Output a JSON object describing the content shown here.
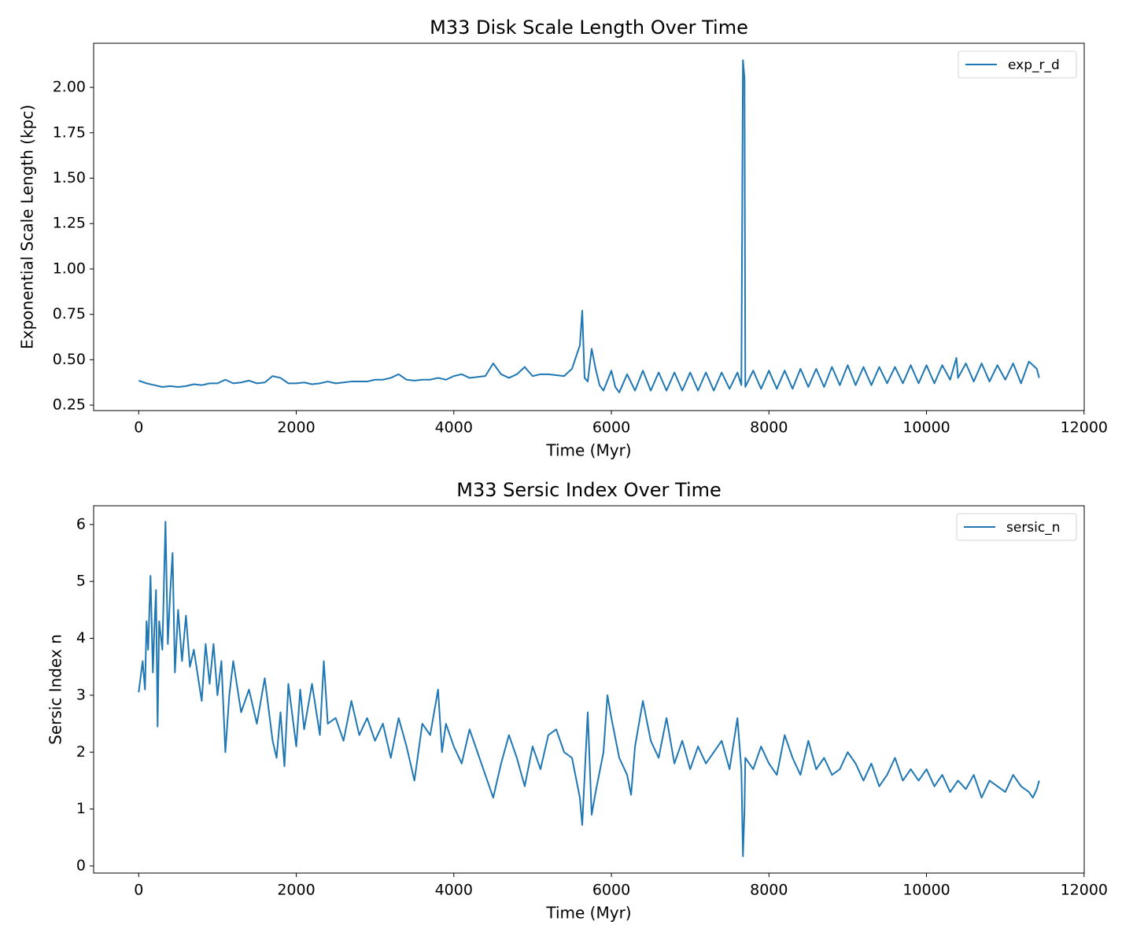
{
  "chart_data": [
    {
      "type": "line",
      "title": "M33 Disk Scale Length Over Time",
      "x_label": "Time (Myr)",
      "y_label": "Exponential Scale Length (kpc)",
      "x": [
        0,
        100,
        200,
        300,
        400,
        500,
        600,
        700,
        800,
        900,
        1000,
        1100,
        1200,
        1300,
        1400,
        1500,
        1600,
        1700,
        1800,
        1900,
        2000,
        2100,
        2200,
        2300,
        2400,
        2500,
        2600,
        2700,
        2800,
        2900,
        3000,
        3100,
        3200,
        3300,
        3400,
        3500,
        3600,
        3700,
        3800,
        3900,
        4000,
        4100,
        4200,
        4300,
        4400,
        4500,
        4600,
        4700,
        4800,
        4900,
        5000,
        5100,
        5200,
        5300,
        5400,
        5500,
        5600,
        5630,
        5660,
        5700,
        5750,
        5800,
        5850,
        5900,
        6000,
        6050,
        6100,
        6200,
        6300,
        6400,
        6500,
        6600,
        6700,
        6800,
        6900,
        7000,
        7100,
        7200,
        7300,
        7400,
        7500,
        7600,
        7650,
        7670,
        7690,
        7700,
        7800,
        7900,
        8000,
        8100,
        8200,
        8300,
        8400,
        8500,
        8600,
        8700,
        8800,
        8900,
        9000,
        9100,
        9200,
        9300,
        9400,
        9500,
        9600,
        9700,
        9800,
        9900,
        10000,
        10100,
        10200,
        10300,
        10380,
        10400,
        10500,
        10600,
        10700,
        10800,
        10900,
        11000,
        11100,
        11200,
        11300,
        11400,
        11430
      ],
      "series": [
        {
          "name": "exp_r_d",
          "color": "#1f77b4",
          "values": [
            0.385,
            0.37,
            0.36,
            0.35,
            0.355,
            0.35,
            0.355,
            0.365,
            0.36,
            0.37,
            0.37,
            0.39,
            0.37,
            0.375,
            0.385,
            0.37,
            0.375,
            0.41,
            0.4,
            0.37,
            0.37,
            0.375,
            0.365,
            0.37,
            0.38,
            0.37,
            0.375,
            0.38,
            0.38,
            0.38,
            0.39,
            0.39,
            0.4,
            0.42,
            0.39,
            0.385,
            0.39,
            0.39,
            0.4,
            0.39,
            0.41,
            0.42,
            0.4,
            0.405,
            0.41,
            0.48,
            0.42,
            0.4,
            0.42,
            0.46,
            0.41,
            0.42,
            0.42,
            0.415,
            0.41,
            0.45,
            0.58,
            0.77,
            0.4,
            0.38,
            0.56,
            0.45,
            0.36,
            0.33,
            0.44,
            0.35,
            0.32,
            0.42,
            0.33,
            0.44,
            0.33,
            0.43,
            0.33,
            0.43,
            0.33,
            0.43,
            0.33,
            0.43,
            0.33,
            0.43,
            0.34,
            0.43,
            0.36,
            2.15,
            2.05,
            0.35,
            0.44,
            0.34,
            0.44,
            0.34,
            0.44,
            0.34,
            0.45,
            0.35,
            0.45,
            0.35,
            0.46,
            0.36,
            0.47,
            0.36,
            0.46,
            0.36,
            0.46,
            0.37,
            0.46,
            0.37,
            0.47,
            0.37,
            0.47,
            0.37,
            0.47,
            0.39,
            0.51,
            0.4,
            0.48,
            0.38,
            0.48,
            0.38,
            0.47,
            0.39,
            0.48,
            0.37,
            0.49,
            0.45,
            0.4
          ]
        }
      ],
      "xlim": [
        -572,
        12002
      ],
      "ylim": [
        0.22,
        2.243
      ],
      "xticks": [
        0,
        2000,
        4000,
        6000,
        8000,
        10000,
        12000
      ],
      "yticks": [
        {
          "value": 0.25,
          "label": "0.25"
        },
        {
          "value": 0.5,
          "label": "0.50"
        },
        {
          "value": 0.75,
          "label": "0.75"
        },
        {
          "value": 1,
          "label": "1.00"
        },
        {
          "value": 1.25,
          "label": "1.25"
        },
        {
          "value": 1.5,
          "label": "1.50"
        },
        {
          "value": 1.75,
          "label": "1.75"
        },
        {
          "value": 2,
          "label": "2.00"
        }
      ],
      "legend": "upper right"
    },
    {
      "type": "line",
      "title": "M33 Sersic Index Over Time",
      "x_label": "Time (Myr)",
      "y_label": "Sersic Index n",
      "x": [
        0,
        50,
        80,
        100,
        120,
        150,
        180,
        200,
        220,
        240,
        260,
        300,
        340,
        370,
        400,
        430,
        460,
        500,
        550,
        600,
        650,
        700,
        800,
        850,
        900,
        950,
        1000,
        1050,
        1100,
        1150,
        1200,
        1300,
        1400,
        1500,
        1600,
        1700,
        1750,
        1800,
        1850,
        1900,
        2000,
        2050,
        2100,
        2200,
        2300,
        2350,
        2400,
        2500,
        2600,
        2700,
        2800,
        2900,
        3000,
        3100,
        3200,
        3300,
        3400,
        3500,
        3600,
        3700,
        3800,
        3850,
        3900,
        4000,
        4100,
        4200,
        4300,
        4400,
        4500,
        4600,
        4700,
        4800,
        4900,
        5000,
        5100,
        5200,
        5300,
        5400,
        5500,
        5600,
        5630,
        5700,
        5750,
        5800,
        5900,
        5950,
        6000,
        6100,
        6200,
        6250,
        6300,
        6400,
        6500,
        6600,
        6700,
        6800,
        6900,
        7000,
        7100,
        7200,
        7300,
        7400,
        7500,
        7600,
        7650,
        7670,
        7690,
        7700,
        7800,
        7900,
        8000,
        8100,
        8200,
        8300,
        8400,
        8500,
        8600,
        8700,
        8800,
        8900,
        9000,
        9100,
        9200,
        9300,
        9400,
        9500,
        9600,
        9700,
        9800,
        9900,
        10000,
        10100,
        10200,
        10300,
        10400,
        10500,
        10600,
        10700,
        10800,
        10900,
        11000,
        11100,
        11200,
        11300,
        11350,
        11400,
        11430
      ],
      "series": [
        {
          "name": "sersic_n",
          "color": "#1f77b4",
          "values": [
            3.05,
            3.6,
            3.1,
            4.3,
            3.8,
            5.1,
            3.4,
            4.2,
            4.85,
            2.45,
            4.3,
            3.8,
            6.05,
            3.9,
            4.8,
            5.5,
            3.4,
            4.5,
            3.6,
            4.4,
            3.5,
            3.8,
            2.9,
            3.9,
            3.2,
            3.9,
            3.0,
            3.6,
            2.0,
            3.0,
            3.6,
            2.7,
            3.1,
            2.5,
            3.3,
            2.2,
            1.9,
            2.7,
            1.75,
            3.2,
            2.1,
            3.1,
            2.4,
            3.2,
            2.3,
            3.6,
            2.5,
            2.6,
            2.2,
            2.9,
            2.3,
            2.6,
            2.2,
            2.5,
            1.9,
            2.6,
            2.1,
            1.5,
            2.5,
            2.3,
            3.1,
            2.0,
            2.5,
            2.1,
            1.8,
            2.4,
            2.0,
            1.6,
            1.2,
            1.8,
            2.3,
            1.9,
            1.4,
            2.1,
            1.7,
            2.3,
            2.4,
            2.0,
            1.9,
            1.2,
            0.72,
            2.7,
            0.9,
            1.3,
            2.0,
            3.0,
            2.6,
            1.9,
            1.6,
            1.25,
            2.1,
            2.9,
            2.2,
            1.9,
            2.6,
            1.8,
            2.2,
            1.7,
            2.1,
            1.8,
            2.0,
            2.2,
            1.7,
            2.6,
            1.7,
            0.17,
            1.0,
            1.9,
            1.7,
            2.1,
            1.8,
            1.6,
            2.3,
            1.9,
            1.6,
            2.2,
            1.7,
            1.9,
            1.6,
            1.7,
            2.0,
            1.8,
            1.5,
            1.8,
            1.4,
            1.6,
            1.9,
            1.5,
            1.7,
            1.5,
            1.7,
            1.4,
            1.6,
            1.3,
            1.5,
            1.35,
            1.6,
            1.2,
            1.5,
            1.4,
            1.3,
            1.6,
            1.4,
            1.3,
            1.2,
            1.35,
            1.5
          ]
        }
      ],
      "xlim": [
        -572,
        12002
      ],
      "ylim": [
        -0.125,
        6.33
      ],
      "xticks": [
        0,
        2000,
        4000,
        6000,
        8000,
        10000,
        12000
      ],
      "yticks": [
        0,
        1,
        2,
        3,
        4,
        5,
        6
      ],
      "legend": "upper right"
    }
  ]
}
